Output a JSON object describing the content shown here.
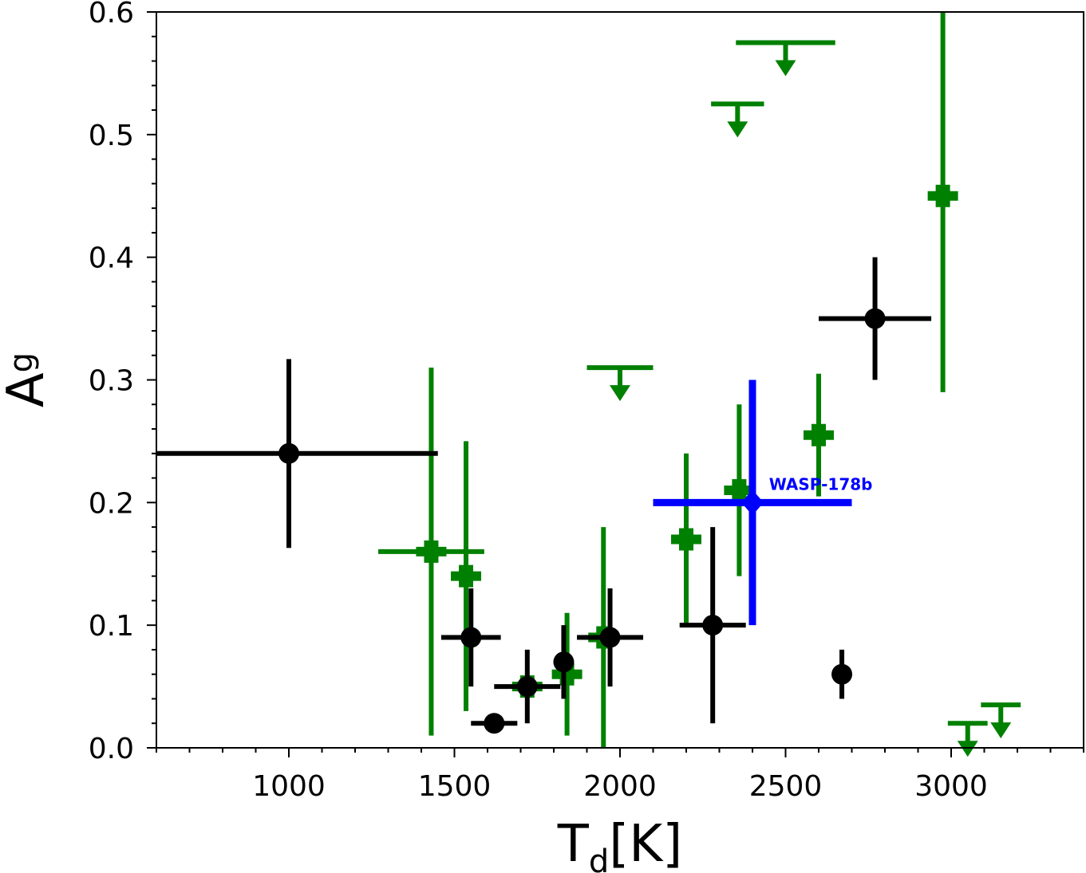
{
  "chart_data": {
    "type": "scatter",
    "title": "",
    "xlabel": {
      "main": "T",
      "sub": "d",
      "unit": "[K]"
    },
    "ylabel": {
      "main": "A",
      "sub": "g"
    },
    "xlim": [
      600,
      3400
    ],
    "ylim": [
      0.0,
      0.6
    ],
    "xticks": [
      1000,
      1500,
      2000,
      2500,
      3000
    ],
    "xtick_labels": [
      "1000",
      "1500",
      "2000",
      "2500",
      "3000"
    ],
    "xminor_step": 100,
    "yticks": [
      0.0,
      0.1,
      0.2,
      0.3,
      0.4,
      0.5,
      0.6
    ],
    "ytick_labels": [
      "0.0",
      "0.1",
      "0.2",
      "0.3",
      "0.4",
      "0.5",
      "0.6"
    ],
    "yminor_step": 0.02,
    "grid": false,
    "legend": "none",
    "series": [
      {
        "color": "#008000",
        "marker": "plus",
        "points": [
          {
            "x": 1430,
            "y": 0.16,
            "xerr": [
              160,
              160
            ],
            "yerr": [
              0.15,
              0.15
            ]
          },
          {
            "x": 1535,
            "y": 0.14,
            "xerr": [
              0,
              0
            ],
            "yerr": [
              0.11,
              0.11
            ]
          },
          {
            "x": 1720,
            "y": 0.05,
            "xerr": [
              0,
              0
            ],
            "yerr": [
              0.0,
              0.0
            ]
          },
          {
            "x": 1840,
            "y": 0.06,
            "xerr": [
              0,
              0
            ],
            "yerr": [
              0.05,
              0.05
            ]
          },
          {
            "x": 1950,
            "y": 0.09,
            "xerr": [
              0,
              0
            ],
            "yerr": [
              0.09,
              0.09
            ]
          },
          {
            "x": 2200,
            "y": 0.17,
            "xerr": [
              0,
              0
            ],
            "yerr": [
              0.07,
              0.07
            ]
          },
          {
            "x": 2360,
            "y": 0.21,
            "xerr": [
              0,
              0
            ],
            "yerr": [
              0.07,
              0.07
            ]
          },
          {
            "x": 2600,
            "y": 0.255,
            "xerr": [
              0,
              0
            ],
            "yerr": [
              0.05,
              0.05
            ]
          },
          {
            "x": 2975,
            "y": 0.45,
            "xerr": [
              0,
              0
            ],
            "yerr": [
              0.16,
              0.15
            ]
          }
        ],
        "upper_limits": [
          {
            "x": 2000,
            "y": 0.31,
            "xerr": 100
          },
          {
            "x": 2355,
            "y": 0.525,
            "xerr": 80
          },
          {
            "x": 2500,
            "y": 0.575,
            "xerr": 150
          },
          {
            "x": 3050,
            "y": 0.02,
            "xerr": 60
          },
          {
            "x": 3150,
            "y": 0.035,
            "xerr": 60
          }
        ]
      },
      {
        "color": "#000000",
        "marker": "circle",
        "points": [
          {
            "x": 1000,
            "y": 0.24,
            "xerr": [
              400,
              450
            ],
            "yerr": [
              0.077,
              0.077
            ]
          },
          {
            "x": 1550,
            "y": 0.09,
            "xerr": [
              90,
              90
            ],
            "yerr": [
              0.04,
              0.04
            ]
          },
          {
            "x": 1620,
            "y": 0.02,
            "xerr": [
              70,
              70
            ],
            "yerr": [
              0.007,
              0.007
            ]
          },
          {
            "x": 1720,
            "y": 0.05,
            "xerr": [
              100,
              100
            ],
            "yerr": [
              0.03,
              0.03
            ]
          },
          {
            "x": 1830,
            "y": 0.07,
            "xerr": [
              0,
              0
            ],
            "yerr": [
              0.03,
              0.03
            ]
          },
          {
            "x": 1970,
            "y": 0.09,
            "xerr": [
              100,
              100
            ],
            "yerr": [
              0.04,
              0.04
            ]
          },
          {
            "x": 2280,
            "y": 0.1,
            "xerr": [
              100,
              100
            ],
            "yerr": [
              0.08,
              0.08
            ]
          },
          {
            "x": 2670,
            "y": 0.06,
            "xerr": [
              30,
              30
            ],
            "yerr": [
              0.02,
              0.02
            ]
          },
          {
            "x": 2770,
            "y": 0.35,
            "xerr": [
              170,
              170
            ],
            "yerr": [
              0.05,
              0.05
            ]
          }
        ]
      },
      {
        "name": "WASP-178b",
        "color": "#0000ff",
        "marker": "diamond",
        "points": [
          {
            "x": 2400,
            "y": 0.2,
            "xerr": [
              300,
              300
            ],
            "yerr": [
              0.1,
              0.1
            ]
          }
        ]
      }
    ],
    "annotations": [
      {
        "text": "WASP-178b",
        "x": 2450,
        "y": 0.215,
        "color": "#0000ff"
      }
    ]
  }
}
